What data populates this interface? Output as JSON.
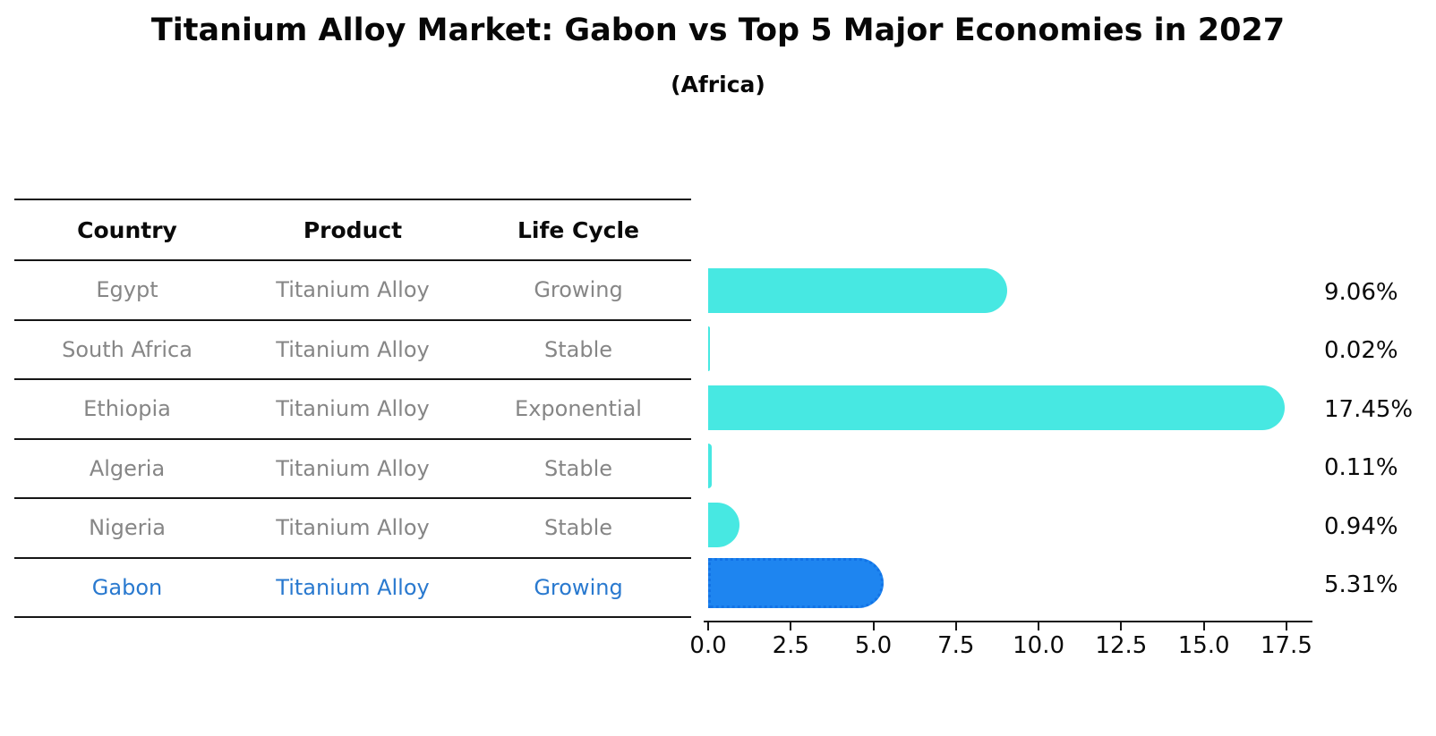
{
  "title": "Titanium Alloy Market: Gabon vs Top 5 Major Economies in 2027",
  "subtitle": "(Africa)",
  "table": {
    "headers": [
      "Country",
      "Product",
      "Life Cycle"
    ],
    "rows": [
      {
        "country": "Egypt",
        "product": "Titanium Alloy",
        "life_cycle": "Growing",
        "highlight": false
      },
      {
        "country": "South Africa",
        "product": "Titanium Alloy",
        "life_cycle": "Stable",
        "highlight": false
      },
      {
        "country": "Ethiopia",
        "product": "Titanium Alloy",
        "life_cycle": "Exponential",
        "highlight": false
      },
      {
        "country": "Algeria",
        "product": "Titanium Alloy",
        "life_cycle": "Stable",
        "highlight": false
      },
      {
        "country": "Nigeria",
        "product": "Titanium Alloy",
        "life_cycle": "Stable",
        "highlight": false
      },
      {
        "country": "Gabon",
        "product": "Titanium Alloy",
        "life_cycle": "Growing",
        "highlight": true
      }
    ]
  },
  "chart_data": {
    "type": "bar",
    "orientation": "horizontal",
    "title": "Titanium Alloy Market: Gabon vs Top 5 Major Economies in 2027",
    "subtitle": "(Africa)",
    "categories": [
      "Egypt",
      "South Africa",
      "Ethiopia",
      "Algeria",
      "Nigeria",
      "Gabon"
    ],
    "values": [
      9.06,
      0.02,
      17.45,
      0.11,
      0.94,
      5.31
    ],
    "value_labels": [
      "9.06%",
      "0.02%",
      "17.45%",
      "0.11%",
      "0.94%",
      "5.31%"
    ],
    "x_ticks": [
      0.0,
      2.5,
      5.0,
      7.5,
      10.0,
      12.5,
      15.0,
      17.5
    ],
    "x_tick_labels": [
      "0.0",
      "2.5",
      "5.0",
      "7.5",
      "10.0",
      "12.5",
      "15.0",
      "17.5"
    ],
    "xlabel": "",
    "ylabel": "",
    "xlim": [
      0,
      18.4
    ],
    "grid": false,
    "legend": "none",
    "highlight_index": 5,
    "colors": {
      "default_bar": "#47E8E2",
      "highlight_bar": "#1E85F0",
      "highlight_bar_border": "#1273E6",
      "highlight_text": "#2979CF",
      "row_text": "#868686",
      "axis_text": "#0a0a0a",
      "line": "#161616"
    }
  }
}
